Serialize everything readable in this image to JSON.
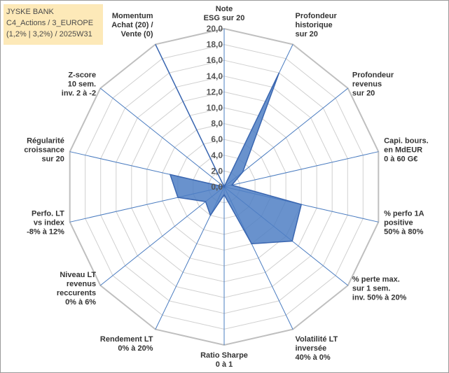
{
  "header": {
    "line1": "JYSKE BANK",
    "line2": "C4_Actions / 3_EUROPE",
    "line3": "(1,2% | 3,2%) / 2025W31"
  },
  "colors": {
    "fill": "#4f7fc4",
    "stroke": "#3a66b0",
    "spoke": "#4a7cc0",
    "grid": "#d0d0d0",
    "outer": "#bfbfbf",
    "header_bg": "#fde9b8"
  },
  "chart_data": {
    "type": "radar",
    "range": [
      0,
      20
    ],
    "tick_step": 2,
    "tick_labels": [
      "0,0",
      "2,0",
      "4,0",
      "6,0",
      "8,0",
      "10,0",
      "12,0",
      "14,0",
      "16,0",
      "18,0",
      "20,0"
    ],
    "axes": [
      {
        "label": [
          "Note",
          "ESG sur 20"
        ],
        "value": 0
      },
      {
        "label": [
          "Profondeur",
          "historique",
          "sur 20"
        ],
        "value": 16
      },
      {
        "label": [
          "Profondeur",
          "revenus",
          "sur 20"
        ],
        "value": 3
      },
      {
        "label": [
          "Capi. bours.",
          "en MdEUR",
          "0 à 60 G€"
        ],
        "value": 1
      },
      {
        "label": [
          "% perfo 1A",
          "positive",
          "50% à 80%"
        ],
        "value": 10
      },
      {
        "label": [
          "% perte max.",
          "sur 1 sem.",
          "inv. 50% à 20%"
        ],
        "value": 11
      },
      {
        "label": [
          "Volatilité LT",
          "inversée",
          "40% à 0%"
        ],
        "value": 8
      },
      {
        "label": [
          "Ratio Sharpe",
          "0 à 1"
        ],
        "value": 1
      },
      {
        "label": [
          "Rendement LT",
          "0% à 20%"
        ],
        "value": 4
      },
      {
        "label": [
          "Niveau LT",
          "revenus",
          "reccurents",
          "0% à 6%"
        ],
        "value": 3
      },
      {
        "label": [
          "Perfo. LT",
          "vs index",
          "-8% à 12%"
        ],
        "value": 6
      },
      {
        "label": [
          "Régularité",
          "croissance",
          "sur 20"
        ],
        "value": 7
      },
      {
        "label": [
          "Z-score",
          "10 sem.",
          "inv. 2 à -2"
        ],
        "value": 0
      },
      {
        "label": [
          "Momentum",
          "Achat (20) /",
          "Vente (0)"
        ],
        "value": 20
      }
    ]
  }
}
